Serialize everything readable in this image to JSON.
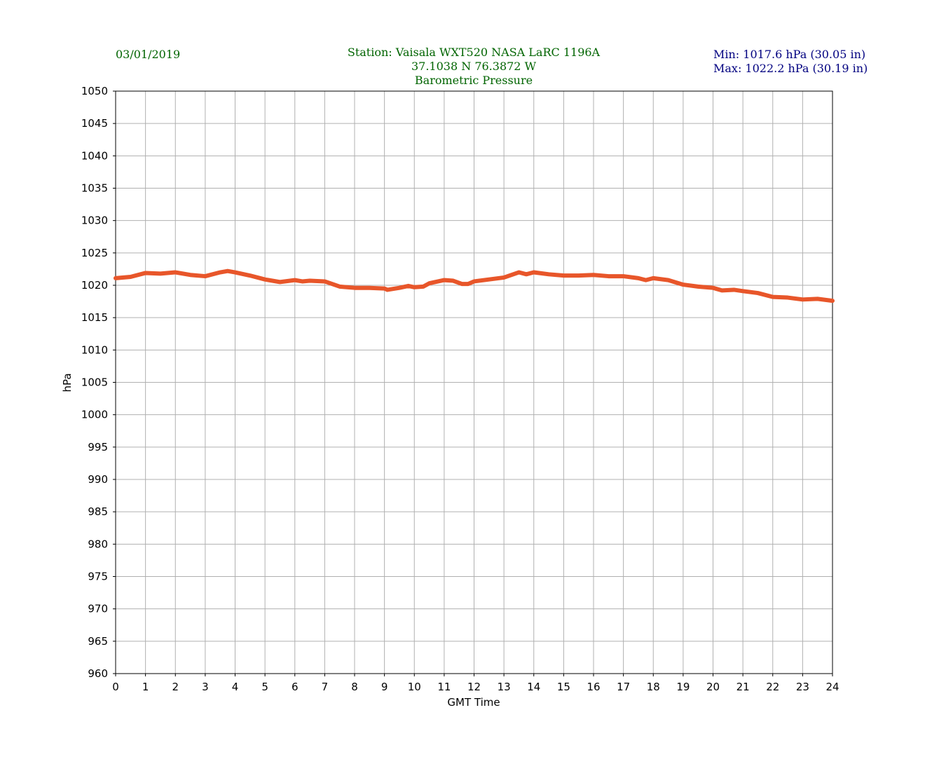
{
  "chart_data": {
    "type": "line",
    "date": "03/01/2019",
    "title": [
      "Station:  Vaisala WXT520  NASA LaRC 1196A",
      "37.1038 N 76.3872 W",
      "Barometric Pressure"
    ],
    "stats": [
      "Min: 1017.6 hPa (30.05 in)",
      "Max: 1022.2 hPa (30.19 in)"
    ],
    "x_label": "GMT Time",
    "y_label": "hPa",
    "xlim": [
      0,
      24
    ],
    "xticks": [
      0,
      1,
      2,
      3,
      4,
      5,
      6,
      7,
      8,
      9,
      10,
      11,
      12,
      13,
      14,
      15,
      16,
      17,
      18,
      19,
      20,
      21,
      22,
      23,
      24
    ],
    "ylim": [
      960,
      1050
    ],
    "yticks": [
      960,
      965,
      970,
      975,
      980,
      985,
      990,
      995,
      1000,
      1005,
      1010,
      1015,
      1020,
      1025,
      1030,
      1035,
      1040,
      1045,
      1050
    ],
    "grid": true,
    "series": [
      {
        "name": "Barometric Pressure",
        "color": "#e8562a",
        "x": [
          0,
          0.5,
          1,
          1.5,
          2,
          2.5,
          3,
          3.5,
          3.75,
          4,
          4.5,
          5,
          5.5,
          6,
          6.25,
          6.5,
          7,
          7.5,
          8,
          8.5,
          9,
          9.1,
          9.5,
          9.8,
          10,
          10.3,
          10.5,
          11,
          11.3,
          11.6,
          11.8,
          12,
          12.5,
          13,
          13.5,
          13.75,
          14,
          14.5,
          15,
          15.5,
          16,
          16.5,
          17,
          17.5,
          17.75,
          18,
          18.5,
          19,
          19.5,
          20,
          20.3,
          20.7,
          21,
          21.5,
          22,
          22.5,
          23,
          23.5,
          24
        ],
        "values": [
          1021.1,
          1021.3,
          1021.9,
          1021.8,
          1022.0,
          1021.6,
          1021.4,
          1022.0,
          1022.2,
          1022.0,
          1021.5,
          1020.9,
          1020.5,
          1020.8,
          1020.6,
          1020.7,
          1020.6,
          1019.8,
          1019.6,
          1019.6,
          1019.5,
          1019.3,
          1019.6,
          1019.9,
          1019.7,
          1019.8,
          1020.3,
          1020.8,
          1020.7,
          1020.2,
          1020.2,
          1020.6,
          1020.9,
          1021.2,
          1022.0,
          1021.7,
          1022.0,
          1021.7,
          1021.5,
          1021.5,
          1021.6,
          1021.4,
          1021.4,
          1021.1,
          1020.8,
          1021.1,
          1020.8,
          1020.1,
          1019.8,
          1019.6,
          1019.2,
          1019.3,
          1019.1,
          1018.8,
          1018.2,
          1018.1,
          1017.8,
          1017.9,
          1017.6
        ]
      }
    ]
  }
}
